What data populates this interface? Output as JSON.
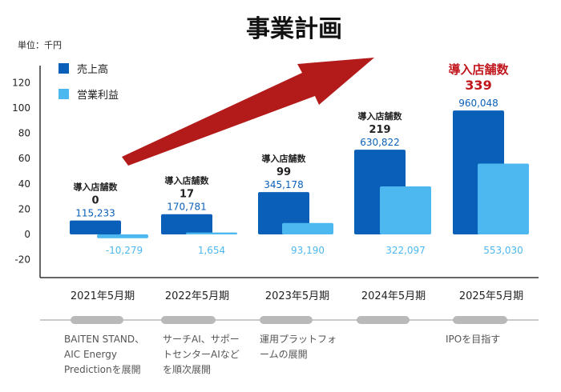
{
  "title": "事業計画",
  "unit_label": "単位：千円",
  "colors": {
    "sales": "#0a60b9",
    "profit": "#4db8f0",
    "arrow": "#b31b1b",
    "store_highlight": "#c0161c",
    "timeline": "#b9b9b9"
  },
  "chart_data": {
    "type": "bar",
    "title": "事業計画",
    "ylabel": "",
    "ylim": [
      -20,
      120
    ],
    "yticks": [
      120,
      100,
      80,
      60,
      40,
      20,
      0,
      -20
    ],
    "categories": [
      "2021年5月期",
      "2022年5月期",
      "2023年5月期",
      "2024年5月期",
      "2025年5月期"
    ],
    "series": [
      {
        "name": "売上高",
        "color": "#0a60b9",
        "values": [
          11,
          16,
          33.5,
          67,
          98
        ],
        "labels": [
          "115,233",
          "170,781",
          "345,178",
          "630,822",
          "960,048"
        ]
      },
      {
        "name": "営業利益",
        "color": "#4db8f0",
        "values": [
          -3,
          1.5,
          9,
          38,
          56
        ],
        "labels": [
          "-10,279",
          "1,654",
          "93,190",
          "322,097",
          "553,030"
        ]
      }
    ],
    "store_label": "導入店舗数",
    "store_counts": [
      "0",
      "17",
      "99",
      "219",
      "339"
    ],
    "legend_position": "top-left",
    "grid": false
  },
  "timeline": {
    "notes": [
      [
        "BAITEN STAND、",
        "AIC Energy",
        "Predictionを展開"
      ],
      [
        "サーチAI、サポー",
        "トセンターAIなど",
        "を順次展開"
      ],
      [
        "運用プラットフォ",
        "ームの展開"
      ],
      [],
      [
        "IPOを目指す"
      ]
    ]
  }
}
